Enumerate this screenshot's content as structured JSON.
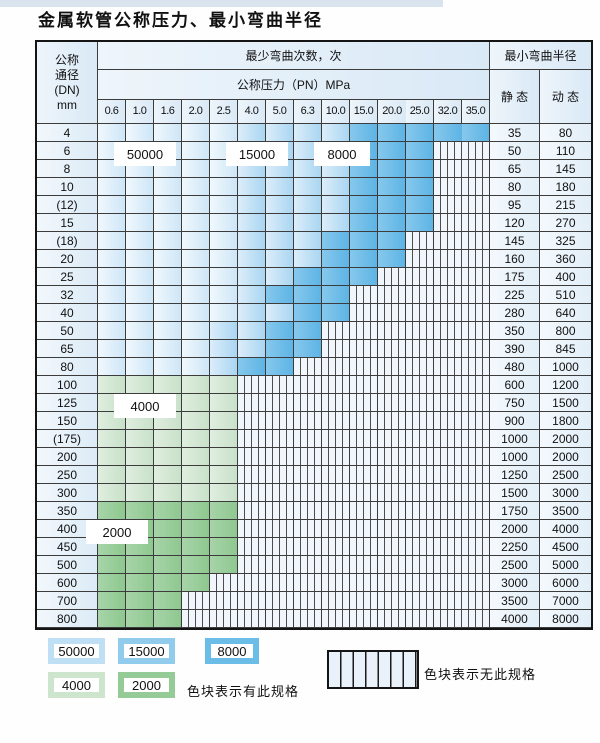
{
  "page": {
    "title": "金属软管公称压力、最小弯曲半径"
  },
  "table": {
    "header": {
      "dn_lines": [
        "公称",
        "通径",
        "(DN)",
        "mm"
      ],
      "bend_cycles": "最少弯曲次数，次",
      "pressure": "公称压力（PN）MPa",
      "radius": "最小弯曲半径",
      "static": "静 态",
      "dynamic": "动 态"
    },
    "pressures": [
      "0.6",
      "1.0",
      "1.6",
      "2.0",
      "2.5",
      "4.0",
      "5.0",
      "6.3",
      "10.0",
      "15.0",
      "20.0",
      "25.0",
      "32.0",
      "35.0"
    ],
    "rows": [
      {
        "dn": "4",
        "stat": "35",
        "dyn": "80",
        "fill": "b",
        "m": 5,
        "d": 9,
        "last": 13
      },
      {
        "dn": "6",
        "stat": "50",
        "dyn": "110",
        "fill": "b",
        "m": 5,
        "d": 9,
        "last": 11
      },
      {
        "dn": "8",
        "stat": "65",
        "dyn": "145",
        "fill": "b",
        "m": 5,
        "d": 9,
        "last": 11
      },
      {
        "dn": "10",
        "stat": "80",
        "dyn": "180",
        "fill": "b",
        "m": 5,
        "d": 9,
        "last": 11
      },
      {
        "dn": "(12)",
        "stat": "95",
        "dyn": "215",
        "fill": "b",
        "m": 5,
        "d": 9,
        "last": 11
      },
      {
        "dn": "15",
        "stat": "120",
        "dyn": "270",
        "fill": "b",
        "m": 5,
        "d": 9,
        "last": 11
      },
      {
        "dn": "(18)",
        "stat": "145",
        "dyn": "325",
        "fill": "b",
        "m": 5,
        "d": 8,
        "last": 10
      },
      {
        "dn": "20",
        "stat": "160",
        "dyn": "360",
        "fill": "b",
        "m": 5,
        "d": 8,
        "last": 10
      },
      {
        "dn": "25",
        "stat": "175",
        "dyn": "400",
        "fill": "b",
        "m": 5,
        "d": 7,
        "last": 9
      },
      {
        "dn": "32",
        "stat": "225",
        "dyn": "510",
        "fill": "b",
        "m": 5,
        "d": 6,
        "last": 8
      },
      {
        "dn": "40",
        "stat": "280",
        "dyn": "640",
        "fill": "b",
        "m": 5,
        "d": 7,
        "last": 8
      },
      {
        "dn": "50",
        "stat": "350",
        "dyn": "800",
        "fill": "b",
        "m": 4,
        "d": 6,
        "last": 7
      },
      {
        "dn": "65",
        "stat": "390",
        "dyn": "845",
        "fill": "b",
        "m": 4,
        "d": 6,
        "last": 7
      },
      {
        "dn": "80",
        "stat": "480",
        "dyn": "1000",
        "fill": "b",
        "m": 4,
        "d": 5,
        "last": 6
      },
      {
        "dn": "100",
        "stat": "600",
        "dyn": "1200",
        "fill": "g4",
        "last": 4
      },
      {
        "dn": "125",
        "stat": "750",
        "dyn": "1500",
        "fill": "g4",
        "last": 4
      },
      {
        "dn": "150",
        "stat": "900",
        "dyn": "1800",
        "fill": "g4",
        "last": 4
      },
      {
        "dn": "(175)",
        "stat": "1000",
        "dyn": "2000",
        "fill": "g4",
        "last": 4
      },
      {
        "dn": "200",
        "stat": "1000",
        "dyn": "2000",
        "fill": "g4",
        "last": 4
      },
      {
        "dn": "250",
        "stat": "1250",
        "dyn": "2500",
        "fill": "g4",
        "last": 4
      },
      {
        "dn": "300",
        "stat": "1500",
        "dyn": "3000",
        "fill": "g4",
        "last": 4
      },
      {
        "dn": "350",
        "stat": "1750",
        "dyn": "3500",
        "fill": "g2",
        "last": 4
      },
      {
        "dn": "400",
        "stat": "2000",
        "dyn": "4000",
        "fill": "g2",
        "last": 4
      },
      {
        "dn": "450",
        "stat": "2250",
        "dyn": "4500",
        "fill": "g2",
        "last": 4
      },
      {
        "dn": "500",
        "stat": "2500",
        "dyn": "5000",
        "fill": "g2",
        "last": 4
      },
      {
        "dn": "600",
        "stat": "3000",
        "dyn": "6000",
        "fill": "g2",
        "last": 3
      },
      {
        "dn": "700",
        "stat": "3500",
        "dyn": "7000",
        "fill": "g2",
        "last": 2
      },
      {
        "dn": "800",
        "stat": "4000",
        "dyn": "8000",
        "fill": "g2",
        "last": 2
      }
    ]
  },
  "zone_labels": {
    "c50": "50000",
    "c15": "15000",
    "c8": "8000",
    "c4": "4000",
    "c2": "2000"
  },
  "legend": {
    "has_spec": "色块表示有此规格",
    "no_spec": "色块表示无此规格"
  },
  "colors": {
    "cycles_50000": "#cde6f7",
    "cycles_15000": "#a9d6f1",
    "cycles_8000": "#5db4e5",
    "cycles_4000": "#c8e1c9",
    "cycles_2000": "#8ec88f",
    "no_spec_hatch_bg": "#f0f6fb",
    "grid_line": "#3c3c3c"
  },
  "chart_data": {
    "type": "heatmap",
    "title": "金属软管公称压力、最小弯曲半径",
    "x_categories_pressure_MPa": [
      0.6,
      1.0,
      1.6,
      2.0,
      2.5,
      4.0,
      5.0,
      6.3,
      10.0,
      15.0,
      20.0,
      25.0,
      32.0,
      35.0
    ],
    "y_categories_DN_mm": [
      "4",
      "6",
      "8",
      "10",
      "(12)",
      "15",
      "(18)",
      "20",
      "25",
      "32",
      "40",
      "50",
      "65",
      "80",
      "100",
      "125",
      "150",
      "(175)",
      "200",
      "250",
      "300",
      "350",
      "400",
      "450",
      "500",
      "600",
      "700",
      "800"
    ],
    "cell_values_bend_cycles": "zones per row; pressures above row max have no specification",
    "rows": [
      {
        "dn": "4",
        "zones": [
          [
            "50000",
            "0.6",
            "2.5"
          ],
          [
            "15000",
            "4.0",
            "10.0"
          ],
          [
            "8000",
            "15.0",
            "35.0"
          ]
        ],
        "static": 35,
        "dynamic": 80
      },
      {
        "dn": "6",
        "zones": [
          [
            "50000",
            "0.6",
            "2.5"
          ],
          [
            "15000",
            "4.0",
            "10.0"
          ],
          [
            "8000",
            "15.0",
            "25.0"
          ]
        ],
        "static": 50,
        "dynamic": 110
      },
      {
        "dn": "8",
        "zones": [
          [
            "50000",
            "0.6",
            "2.5"
          ],
          [
            "15000",
            "4.0",
            "10.0"
          ],
          [
            "8000",
            "15.0",
            "25.0"
          ]
        ],
        "static": 65,
        "dynamic": 145
      },
      {
        "dn": "10",
        "zones": [
          [
            "50000",
            "0.6",
            "2.5"
          ],
          [
            "15000",
            "4.0",
            "10.0"
          ],
          [
            "8000",
            "15.0",
            "25.0"
          ]
        ],
        "static": 80,
        "dynamic": 180
      },
      {
        "dn": "(12)",
        "zones": [
          [
            "50000",
            "0.6",
            "2.5"
          ],
          [
            "15000",
            "4.0",
            "10.0"
          ],
          [
            "8000",
            "15.0",
            "25.0"
          ]
        ],
        "static": 95,
        "dynamic": 215
      },
      {
        "dn": "15",
        "zones": [
          [
            "50000",
            "0.6",
            "2.5"
          ],
          [
            "15000",
            "4.0",
            "10.0"
          ],
          [
            "8000",
            "15.0",
            "25.0"
          ]
        ],
        "static": 120,
        "dynamic": 270
      },
      {
        "dn": "(18)",
        "zones": [
          [
            "50000",
            "0.6",
            "2.5"
          ],
          [
            "15000",
            "4.0",
            "6.3"
          ],
          [
            "8000",
            "10.0",
            "20.0"
          ]
        ],
        "static": 145,
        "dynamic": 325
      },
      {
        "dn": "20",
        "zones": [
          [
            "50000",
            "0.6",
            "2.5"
          ],
          [
            "15000",
            "4.0",
            "6.3"
          ],
          [
            "8000",
            "10.0",
            "20.0"
          ]
        ],
        "static": 160,
        "dynamic": 360
      },
      {
        "dn": "25",
        "zones": [
          [
            "50000",
            "0.6",
            "2.5"
          ],
          [
            "15000",
            "4.0",
            "5.0"
          ],
          [
            "8000",
            "6.3",
            "15.0"
          ]
        ],
        "static": 175,
        "dynamic": 400
      },
      {
        "dn": "32",
        "zones": [
          [
            "50000",
            "0.6",
            "2.5"
          ],
          [
            "15000",
            "4.0",
            "4.0"
          ],
          [
            "8000",
            "5.0",
            "10.0"
          ]
        ],
        "static": 225,
        "dynamic": 510
      },
      {
        "dn": "40",
        "zones": [
          [
            "50000",
            "0.6",
            "2.5"
          ],
          [
            "15000",
            "4.0",
            "5.0"
          ],
          [
            "8000",
            "6.3",
            "10.0"
          ]
        ],
        "static": 280,
        "dynamic": 640
      },
      {
        "dn": "50",
        "zones": [
          [
            "50000",
            "0.6",
            "2.0"
          ],
          [
            "15000",
            "2.5",
            "4.0"
          ],
          [
            "8000",
            "5.0",
            "6.3"
          ]
        ],
        "static": 350,
        "dynamic": 800
      },
      {
        "dn": "65",
        "zones": [
          [
            "50000",
            "0.6",
            "2.0"
          ],
          [
            "15000",
            "2.5",
            "4.0"
          ],
          [
            "8000",
            "5.0",
            "6.3"
          ]
        ],
        "static": 390,
        "dynamic": 845
      },
      {
        "dn": "80",
        "zones": [
          [
            "50000",
            "0.6",
            "2.0"
          ],
          [
            "15000",
            "2.5",
            "2.5"
          ],
          [
            "8000",
            "4.0",
            "5.0"
          ]
        ],
        "static": 480,
        "dynamic": 1000
      },
      {
        "dn": "100",
        "zones": [
          [
            "4000",
            "0.6",
            "2.5"
          ]
        ],
        "static": 600,
        "dynamic": 1200
      },
      {
        "dn": "125",
        "zones": [
          [
            "4000",
            "0.6",
            "2.5"
          ]
        ],
        "static": 750,
        "dynamic": 1500
      },
      {
        "dn": "150",
        "zones": [
          [
            "4000",
            "0.6",
            "2.5"
          ]
        ],
        "static": 900,
        "dynamic": 1800
      },
      {
        "dn": "(175)",
        "zones": [
          [
            "4000",
            "0.6",
            "2.5"
          ]
        ],
        "static": 1000,
        "dynamic": 2000
      },
      {
        "dn": "200",
        "zones": [
          [
            "4000",
            "0.6",
            "2.5"
          ]
        ],
        "static": 1000,
        "dynamic": 2000
      },
      {
        "dn": "250",
        "zones": [
          [
            "4000",
            "0.6",
            "2.5"
          ]
        ],
        "static": 1250,
        "dynamic": 2500
      },
      {
        "dn": "300",
        "zones": [
          [
            "4000",
            "0.6",
            "2.5"
          ]
        ],
        "static": 1500,
        "dynamic": 3000
      },
      {
        "dn": "350",
        "zones": [
          [
            "2000",
            "0.6",
            "2.5"
          ]
        ],
        "static": 1750,
        "dynamic": 3500
      },
      {
        "dn": "400",
        "zones": [
          [
            "2000",
            "0.6",
            "2.5"
          ]
        ],
        "static": 2000,
        "dynamic": 4000
      },
      {
        "dn": "450",
        "zones": [
          [
            "2000",
            "0.6",
            "2.5"
          ]
        ],
        "static": 2250,
        "dynamic": 4500
      },
      {
        "dn": "500",
        "zones": [
          [
            "2000",
            "0.6",
            "2.5"
          ]
        ],
        "static": 2500,
        "dynamic": 5000
      },
      {
        "dn": "600",
        "zones": [
          [
            "2000",
            "0.6",
            "2.0"
          ]
        ],
        "static": 3000,
        "dynamic": 6000
      },
      {
        "dn": "700",
        "zones": [
          [
            "2000",
            "0.6",
            "1.6"
          ]
        ],
        "static": 3500,
        "dynamic": 7000
      },
      {
        "dn": "800",
        "zones": [
          [
            "2000",
            "0.6",
            "1.6"
          ]
        ],
        "static": 4000,
        "dynamic": 8000
      }
    ],
    "legend": [
      "50000",
      "15000",
      "8000",
      "4000",
      "2000",
      "色块表示有此规格",
      "色块表示无此规格"
    ],
    "columns_right": {
      "group": "最小弯曲半径",
      "static": "静 态",
      "dynamic": "动 态"
    }
  }
}
